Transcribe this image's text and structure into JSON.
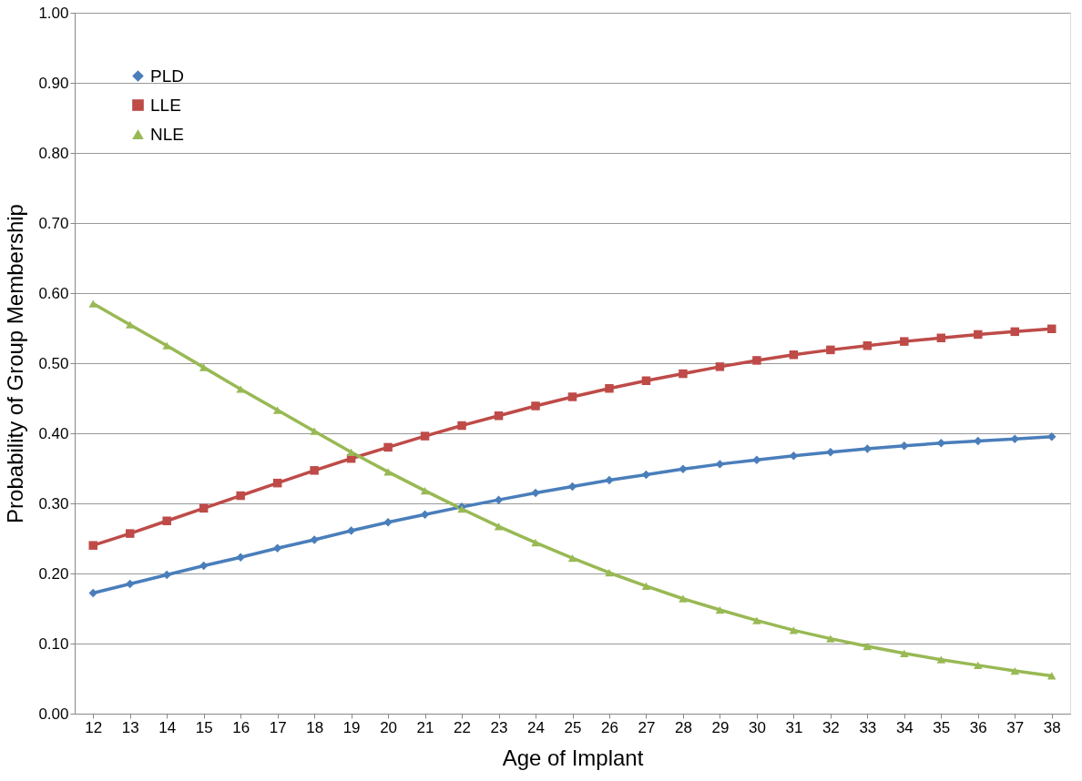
{
  "chart_data": {
    "type": "line",
    "xlabel": "Age of Implant",
    "ylabel": "Probability of Group Membership",
    "categories": [
      "12",
      "13",
      "14",
      "15",
      "16",
      "17",
      "18",
      "19",
      "20",
      "21",
      "22",
      "23",
      "24",
      "25",
      "26",
      "27",
      "28",
      "29",
      "30",
      "31",
      "32",
      "33",
      "34",
      "35",
      "36",
      "37",
      "38"
    ],
    "series": [
      {
        "name": "PLD",
        "color": "#4a7ebb",
        "marker": "diamond",
        "values": [
          0.172,
          0.185,
          0.198,
          0.211,
          0.223,
          0.236,
          0.248,
          0.261,
          0.273,
          0.284,
          0.295,
          0.305,
          0.315,
          0.324,
          0.333,
          0.341,
          0.349,
          0.356,
          0.362,
          0.368,
          0.373,
          0.378,
          0.382,
          0.386,
          0.389,
          0.392,
          0.395
        ]
      },
      {
        "name": "LLE",
        "color": "#be4b48",
        "marker": "square",
        "values": [
          0.24,
          0.257,
          0.275,
          0.293,
          0.311,
          0.329,
          0.347,
          0.364,
          0.38,
          0.396,
          0.411,
          0.425,
          0.439,
          0.452,
          0.464,
          0.475,
          0.485,
          0.495,
          0.504,
          0.512,
          0.519,
          0.525,
          0.531,
          0.536,
          0.541,
          0.545,
          0.549
        ]
      },
      {
        "name": "NLE",
        "color": "#98b954",
        "marker": "triangle",
        "values": [
          0.585,
          0.555,
          0.525,
          0.494,
          0.463,
          0.433,
          0.403,
          0.373,
          0.345,
          0.318,
          0.292,
          0.267,
          0.244,
          0.222,
          0.201,
          0.182,
          0.164,
          0.148,
          0.133,
          0.119,
          0.107,
          0.096,
          0.086,
          0.077,
          0.069,
          0.061,
          0.054
        ]
      }
    ],
    "ylim": [
      0,
      1
    ],
    "yticks": [
      {
        "value": 0,
        "label": "0.00"
      },
      {
        "value": 0.1,
        "label": "0.10"
      },
      {
        "value": 0.2,
        "label": "0.20"
      },
      {
        "value": 0.3,
        "label": "0.30"
      },
      {
        "value": 0.4,
        "label": "0.40"
      },
      {
        "value": 0.5,
        "label": "0.50"
      },
      {
        "value": 0.6,
        "label": "0.60"
      },
      {
        "value": 0.7,
        "label": "0.70"
      },
      {
        "value": 0.8,
        "label": "0.80"
      },
      {
        "value": 0.9,
        "label": "0.90"
      },
      {
        "value": 1,
        "label": "1.00"
      }
    ],
    "grid": "y",
    "legend": "top left",
    "line_style": "solid"
  }
}
